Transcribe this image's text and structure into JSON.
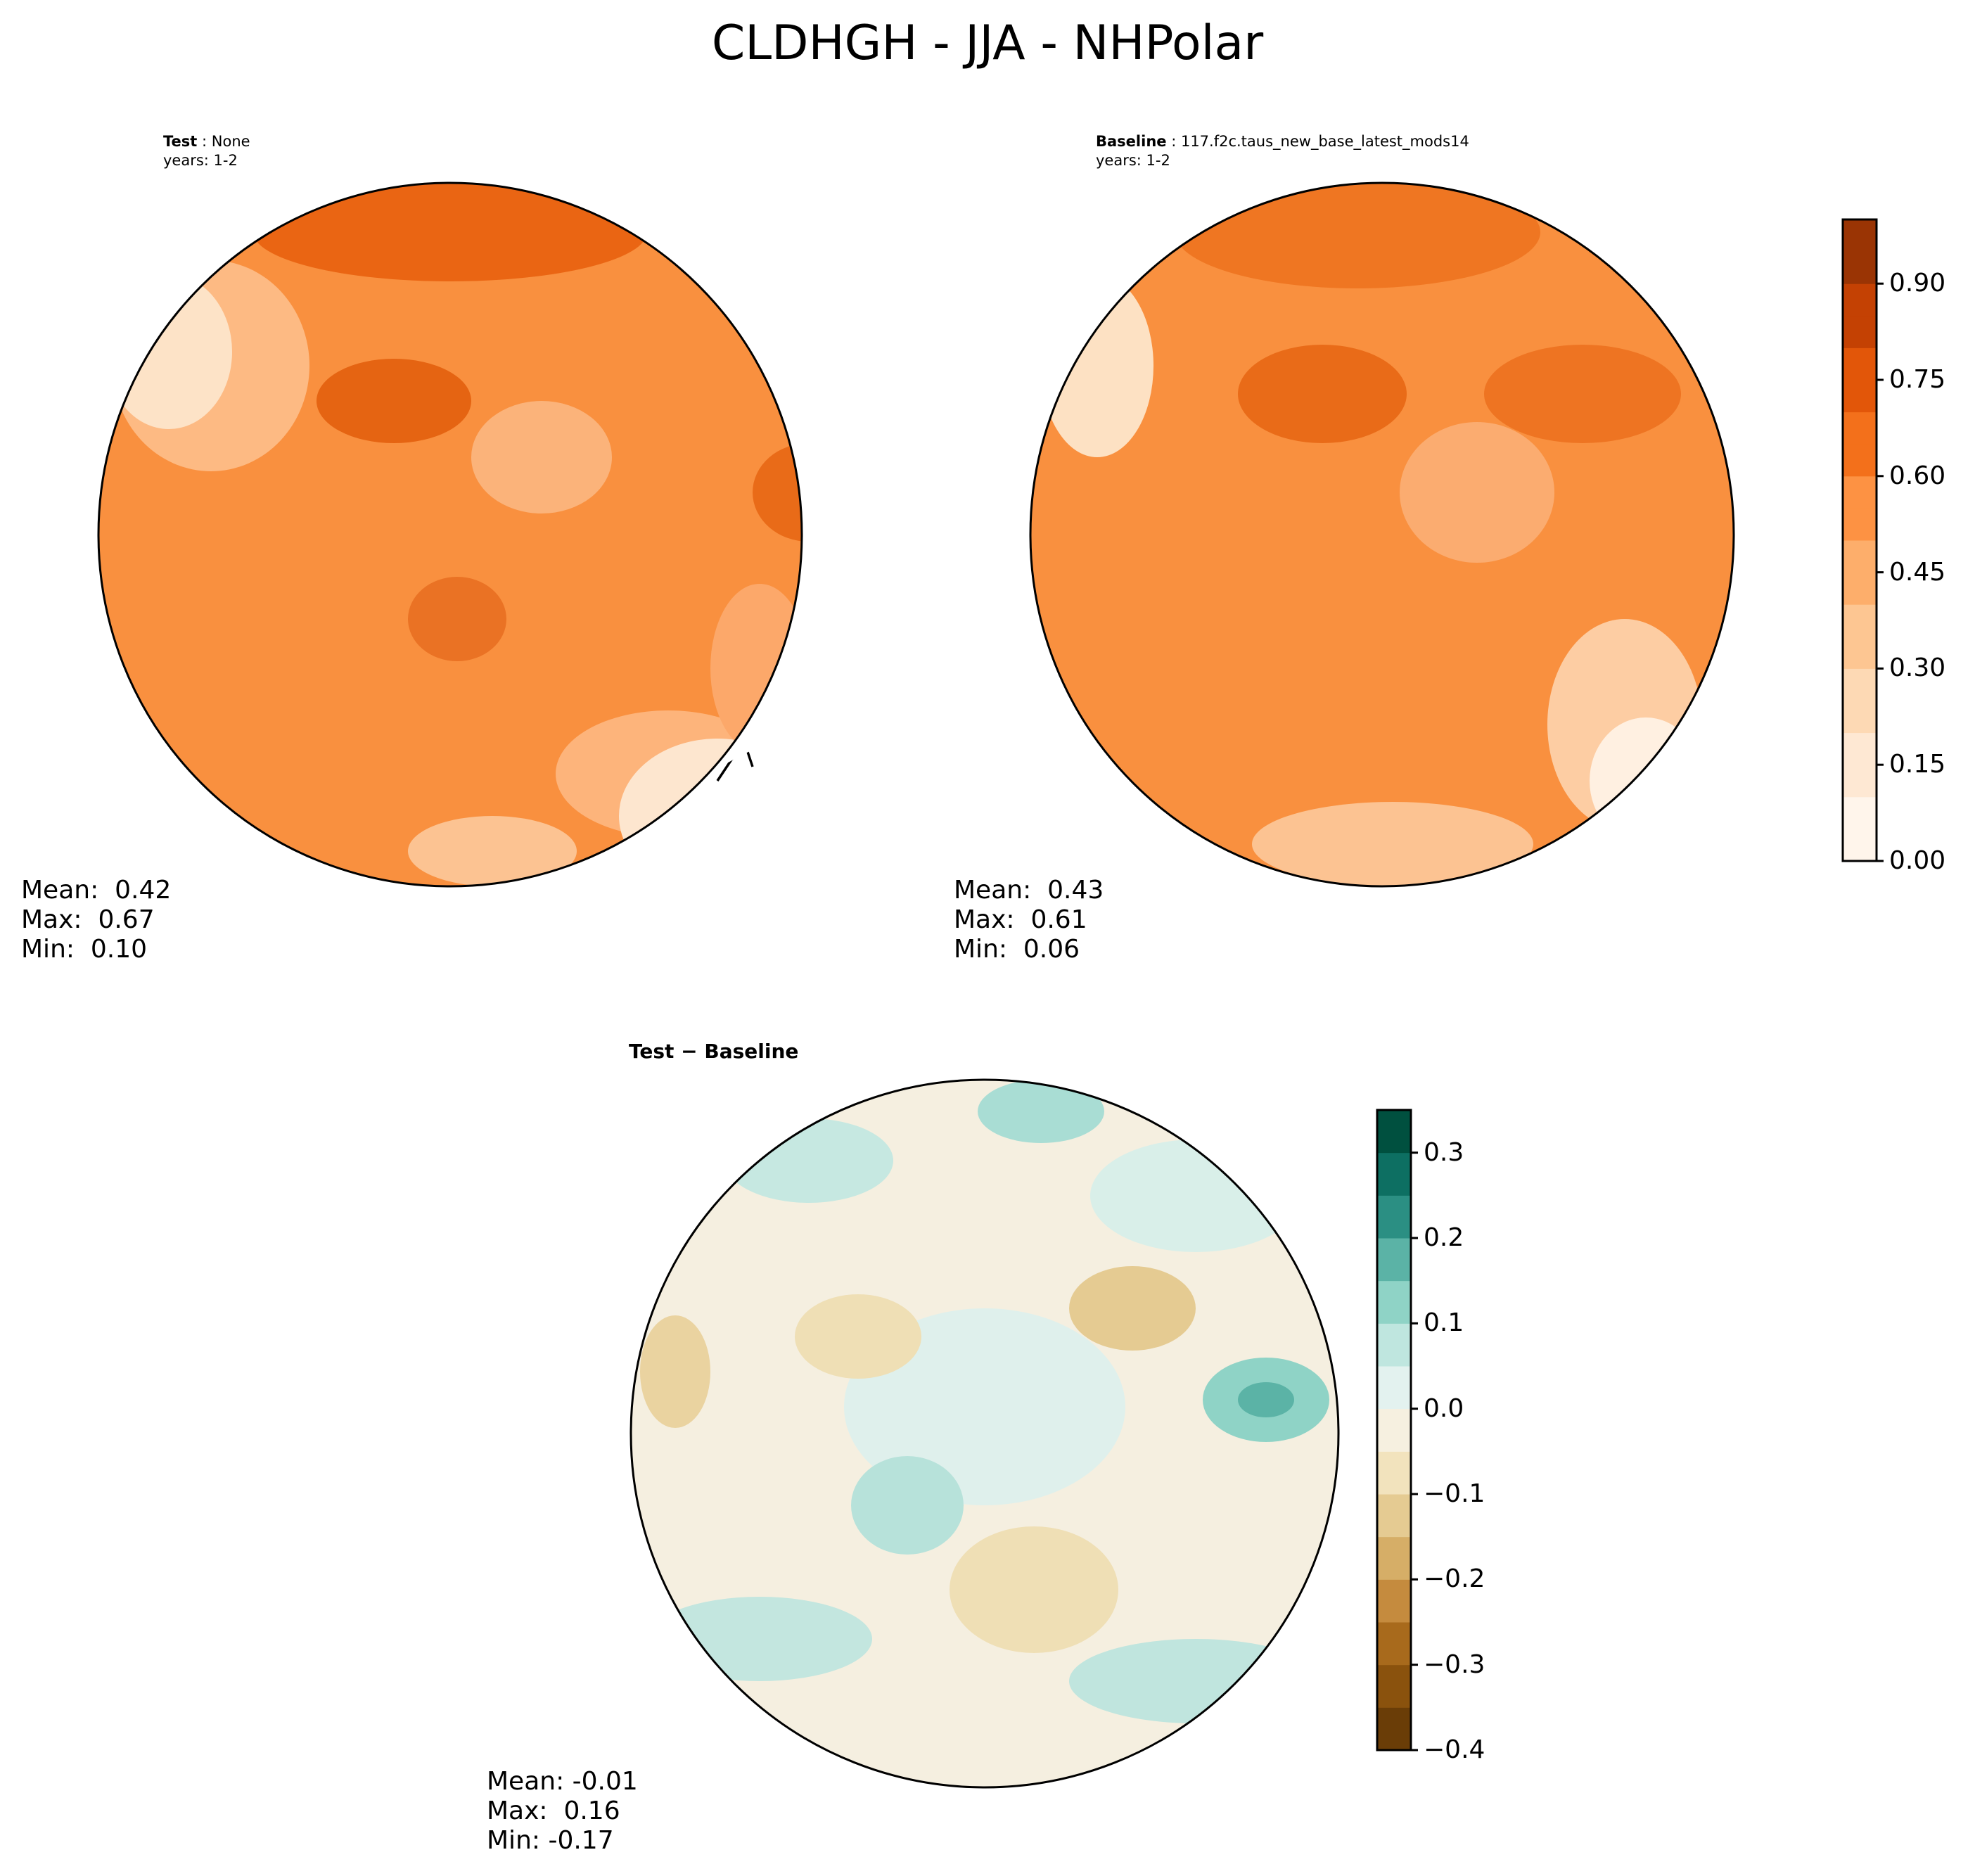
{
  "title": "CLDHGH - JJA - NHPolar",
  "panels": [
    {
      "id": "test",
      "label": "Test",
      "case": "None",
      "years": "years: 1-2",
      "colormap": "Oranges",
      "stats": {
        "mean": "Mean:  0.42",
        "max": "Max:  0.67",
        "min": "Min:  0.10"
      }
    },
    {
      "id": "baseline",
      "label": "Baseline",
      "case": "117.f2c.taus_new_base_latest_mods14",
      "years": "years: 1-2",
      "colormap": "Oranges",
      "stats": {
        "mean": "Mean:  0.43",
        "max": "Max:  0.61",
        "min": "Min:  0.06"
      }
    },
    {
      "id": "diff",
      "label": "Test − Baseline",
      "colormap": "BrBG",
      "stats": {
        "mean": "Mean: -0.01",
        "max": "Max:  0.16",
        "min": "Min: -0.17"
      }
    }
  ],
  "colorbars": {
    "field": {
      "range": [
        0.0,
        1.0
      ],
      "ticks": [
        "0.00",
        "0.15",
        "0.30",
        "0.45",
        "0.60",
        "0.75",
        "0.90"
      ],
      "tick_values": [
        0.0,
        0.15,
        0.3,
        0.45,
        0.6,
        0.75,
        0.9
      ],
      "levels": 20,
      "colors": [
        "#fff5eb",
        "#fee8d3",
        "#fdd9b4",
        "#fdc692",
        "#fdae6b",
        "#fd9243",
        "#f3701b",
        "#e25609",
        "#c44103",
        "#9a3404"
      ]
    },
    "diff": {
      "range": [
        -0.4,
        0.35
      ],
      "ticks": [
        "−0.4",
        "−0.3",
        "−0.2",
        "−0.1",
        "0.0",
        "0.1",
        "0.2",
        "0.3"
      ],
      "tick_values": [
        -0.4,
        -0.3,
        -0.2,
        -0.1,
        0.0,
        0.1,
        0.2,
        0.3
      ],
      "level_colors": [
        "#6a3d07",
        "#8a520d",
        "#a86a1c",
        "#c58b3e",
        "#d6ae67",
        "#e5cb92",
        "#f2e3bd",
        "#f6f0e0",
        "#e3f2ef",
        "#bfe6df",
        "#8fd3c6",
        "#5bb3a6",
        "#2b8f83",
        "#0d6f62",
        "#00503f"
      ]
    }
  }
}
